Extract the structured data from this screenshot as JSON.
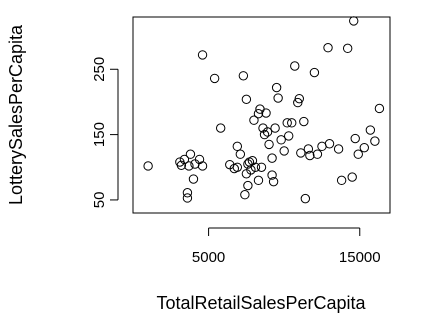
{
  "chart_data": {
    "type": "scatter",
    "title": "",
    "xlabel": "TotalRetailSalesPerCapita",
    "ylabel": "LotterySalesPerCapita",
    "xlim": [
      0,
      17000
    ],
    "ylim": [
      30,
      330
    ],
    "x_ticks": [
      {
        "value": 5000,
        "label": "5000"
      },
      {
        "value": 15000,
        "label": "15000"
      }
    ],
    "y_ticks": [
      {
        "value": 50,
        "label": "50"
      },
      {
        "value": 150,
        "label": "150"
      },
      {
        "value": 250,
        "label": "250"
      }
    ],
    "grid": false,
    "legend": "none",
    "marker": "open-circle",
    "color": "#000000",
    "points": [
      [
        1000,
        102
      ],
      [
        3400,
        112
      ],
      [
        3100,
        108
      ],
      [
        3200,
        103
      ],
      [
        3700,
        102
      ],
      [
        3800,
        120
      ],
      [
        4400,
        112
      ],
      [
        4100,
        105
      ],
      [
        4600,
        102
      ],
      [
        4000,
        82
      ],
      [
        3600,
        53
      ],
      [
        3600,
        61
      ],
      [
        4600,
        272
      ],
      [
        5400,
        236
      ],
      [
        5800,
        160
      ],
      [
        6400,
        104
      ],
      [
        6700,
        98
      ],
      [
        6900,
        132
      ],
      [
        7100,
        120
      ],
      [
        7300,
        240
      ],
      [
        7400,
        58
      ],
      [
        7500,
        204
      ],
      [
        7600,
        105
      ],
      [
        7700,
        108
      ],
      [
        7800,
        96
      ],
      [
        7900,
        110
      ],
      [
        8100,
        100
      ],
      [
        8000,
        172
      ],
      [
        8300,
        182
      ],
      [
        8400,
        189
      ],
      [
        8600,
        160
      ],
      [
        8700,
        150
      ],
      [
        8900,
        154
      ],
      [
        8800,
        183
      ],
      [
        9000,
        135
      ],
      [
        9200,
        114
      ],
      [
        9300,
        78
      ],
      [
        9500,
        222
      ],
      [
        9600,
        206
      ],
      [
        9800,
        142
      ],
      [
        10000,
        125
      ],
      [
        10200,
        168
      ],
      [
        10300,
        148
      ],
      [
        10500,
        168
      ],
      [
        10700,
        255
      ],
      [
        10900,
        199
      ],
      [
        11000,
        205
      ],
      [
        11100,
        122
      ],
      [
        11300,
        170
      ],
      [
        11400,
        52
      ],
      [
        11600,
        128
      ],
      [
        11700,
        118
      ],
      [
        12000,
        245
      ],
      [
        12200,
        120
      ],
      [
        12500,
        132
      ],
      [
        12900,
        283
      ],
      [
        13000,
        136
      ],
      [
        13600,
        128
      ],
      [
        14200,
        282
      ],
      [
        14600,
        324
      ],
      [
        14700,
        144
      ],
      [
        14900,
        120
      ],
      [
        14500,
        85
      ],
      [
        15300,
        130
      ],
      [
        15700,
        157
      ],
      [
        16000,
        140
      ],
      [
        16300,
        190
      ],
      [
        9200,
        88
      ],
      [
        13800,
        80
      ],
      [
        8300,
        80
      ],
      [
        7600,
        72
      ],
      [
        7500,
        90
      ],
      [
        6900,
        100
      ],
      [
        8500,
        100
      ],
      [
        9400,
        160
      ]
    ]
  }
}
